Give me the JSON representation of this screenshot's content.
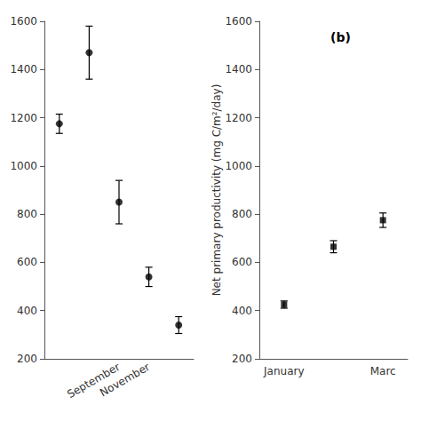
{
  "chart_data": [
    {
      "type": "scatter",
      "categories": [
        null,
        null,
        "September",
        "November",
        null
      ],
      "values": [
        1175,
        1470,
        850,
        540,
        340
      ],
      "yerr": [
        40,
        110,
        90,
        40,
        35
      ],
      "ylim": [
        200,
        1600
      ],
      "yticks": [
        200,
        400,
        600,
        800,
        1000,
        1200,
        1400,
        1600
      ],
      "marker": "circle",
      "color": "black",
      "grid": false
    },
    {
      "type": "scatter",
      "annotation": "(b)",
      "ylabel": "Net primary productivity (mg C/m²/day)",
      "categories": [
        "January",
        null,
        "Marc"
      ],
      "values": [
        425,
        665,
        775
      ],
      "yerr": [
        15,
        25,
        30
      ],
      "ylim": [
        200,
        1600
      ],
      "yticks": [
        200,
        400,
        600,
        800,
        1000,
        1200,
        1400,
        1600
      ],
      "marker": "square",
      "color": "black",
      "grid": false
    }
  ]
}
